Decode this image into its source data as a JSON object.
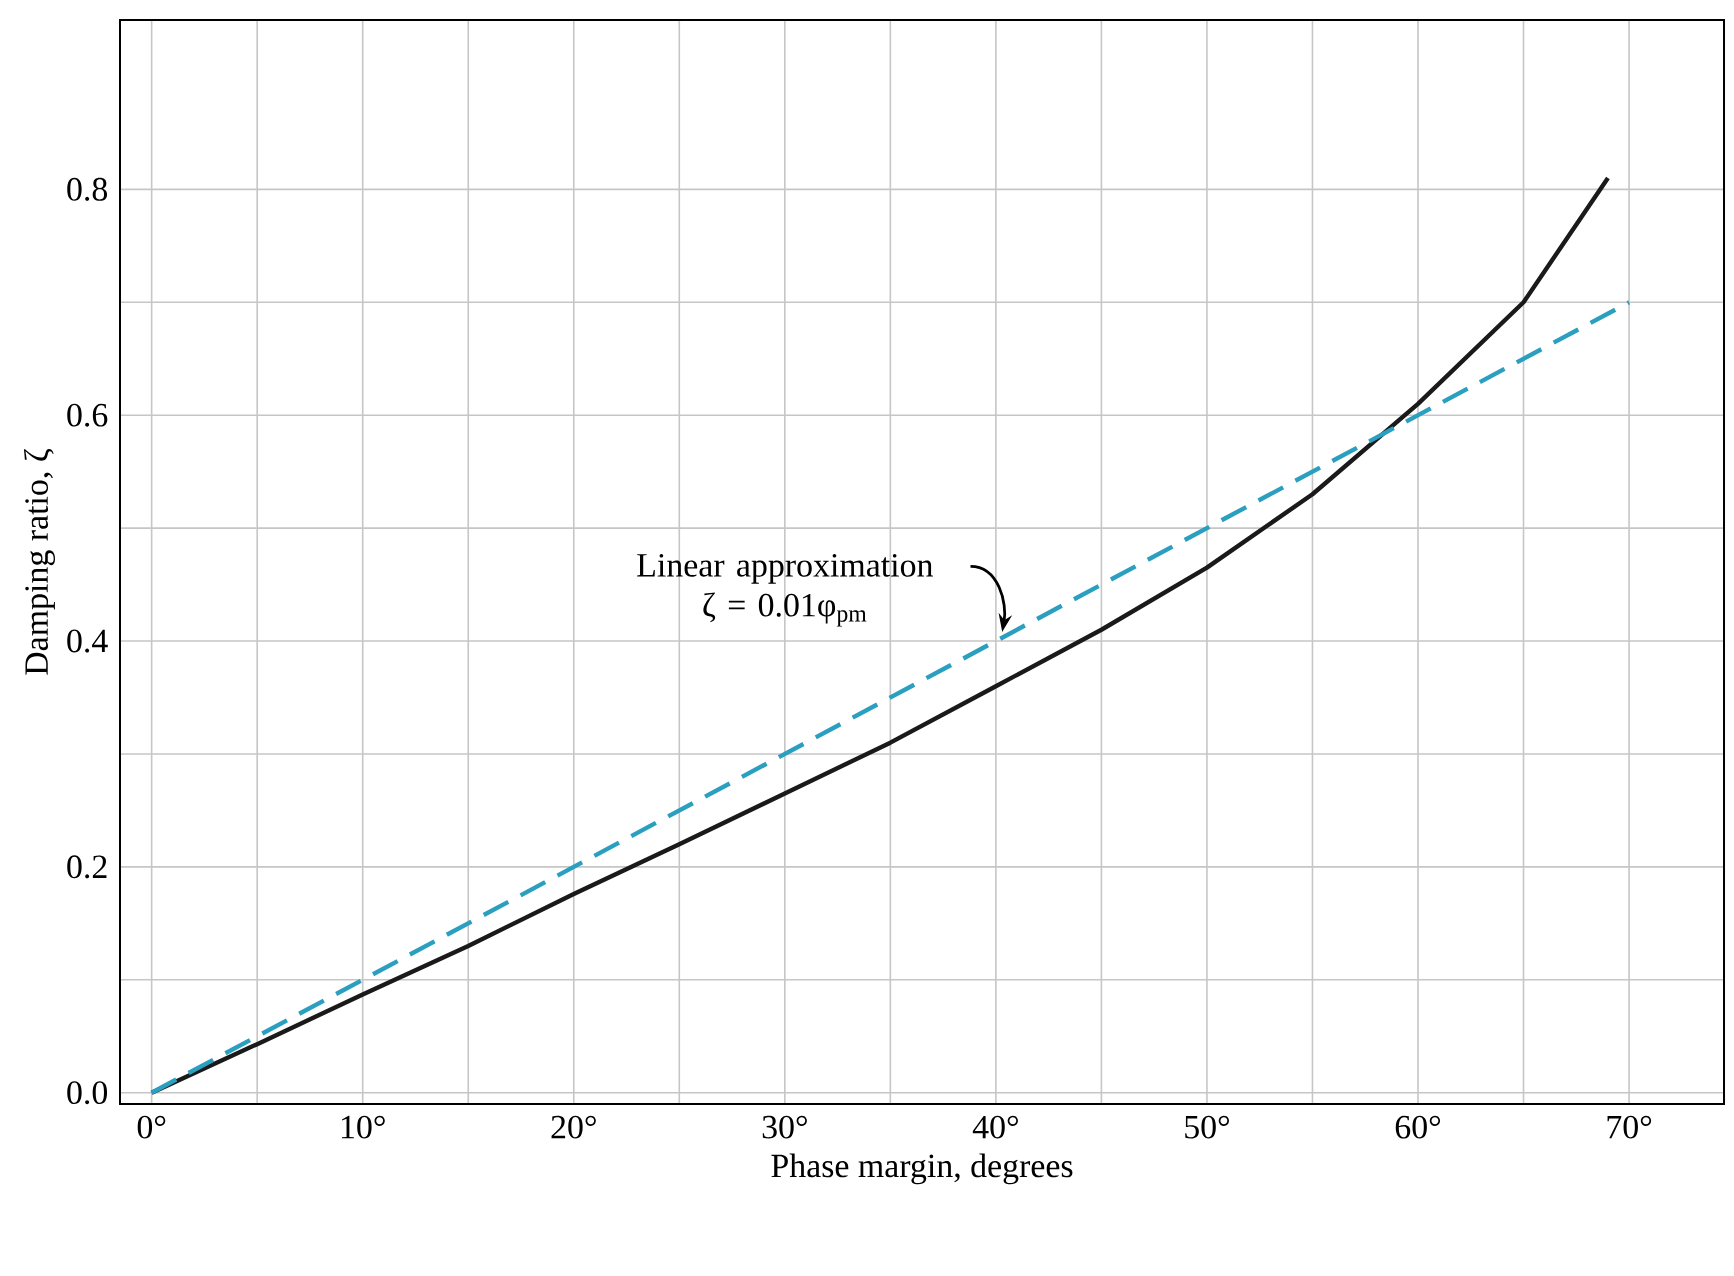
{
  "chart_data": {
    "type": "line",
    "xlabel": "Phase margin, degrees",
    "ylabel": "Damping ratio, ζ",
    "xlim": [
      -1.5,
      74.5
    ],
    "ylim": [
      -0.01,
      0.95
    ],
    "xticks": [
      {
        "value": 0,
        "label": "0°"
      },
      {
        "value": 5,
        "label": null
      },
      {
        "value": 10,
        "label": "10°"
      },
      {
        "value": 15,
        "label": null
      },
      {
        "value": 20,
        "label": "20°"
      },
      {
        "value": 25,
        "label": null
      },
      {
        "value": 30,
        "label": "30°"
      },
      {
        "value": 35,
        "label": null
      },
      {
        "value": 40,
        "label": "40°"
      },
      {
        "value": 45,
        "label": null
      },
      {
        "value": 50,
        "label": "50°"
      },
      {
        "value": 55,
        "label": null
      },
      {
        "value": 60,
        "label": "60°"
      },
      {
        "value": 65,
        "label": null
      },
      {
        "value": 70,
        "label": "70°"
      }
    ],
    "yticks": [
      {
        "value": 0,
        "label": "0.0"
      },
      {
        "value": 0.1,
        "label": null
      },
      0.2,
      {
        "value": 0.3,
        "label": null
      },
      0.4,
      {
        "value": 0.5,
        "label": null
      },
      0.6,
      {
        "value": 0.7,
        "label": null
      },
      0.8
    ],
    "grid": true,
    "series": [
      {
        "color": "#1a1a1a",
        "line_style": "solid",
        "x": [
          0,
          5,
          10,
          15,
          20,
          25,
          30,
          35,
          40,
          45,
          50,
          55,
          60,
          65,
          69
        ],
        "values": [
          0,
          0.043,
          0.087,
          0.13,
          0.176,
          0.22,
          0.265,
          0.31,
          0.36,
          0.41,
          0.465,
          0.53,
          0.61,
          0.7,
          0.81
        ]
      },
      {
        "color": "#2a9fbf",
        "line_style": "dashed",
        "x": [
          0,
          70
        ],
        "values": [
          0,
          0.7
        ]
      }
    ],
    "annotations": [
      {
        "text": "Linear approximation ζ = 0.01φ$_{pm}$",
        "x": 40,
        "y": 0.4
      }
    ]
  }
}
